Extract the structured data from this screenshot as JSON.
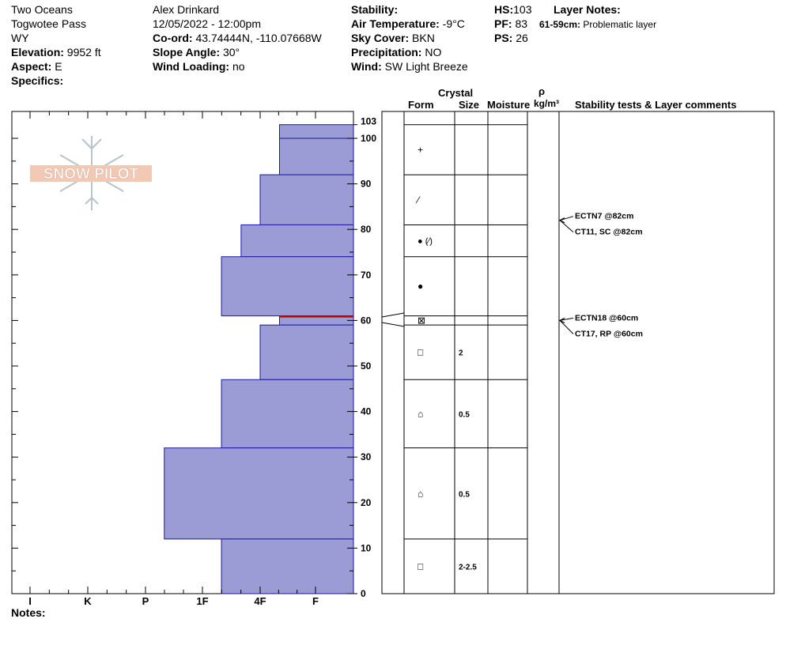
{
  "header": {
    "location": "Two Oceans",
    "area": "Togwotee Pass",
    "state": "WY",
    "elevation_label": "Elevation:",
    "elevation_value": "9952 ft",
    "aspect_label": "Aspect:",
    "aspect_value": "E",
    "specifics_label": "Specifics:",
    "observer": "Alex Drinkard",
    "datetime": "12/05/2022 - 12:00pm",
    "coord_label": "Co-ord:",
    "coord_value": "43.74444N, -110.07668W",
    "slope_label": "Slope Angle:",
    "slope_value": "30°",
    "wind_loading_label": "Wind Loading:",
    "wind_loading_value": "no",
    "stability_label": "Stability:",
    "air_temp_label": "Air Temperature:",
    "air_temp_value": "-9°C",
    "sky_label": "Sky Cover:",
    "sky_value": "BKN",
    "precip_label": "Precipitation:",
    "precip_value": "NO",
    "wind_label": "Wind:",
    "wind_value": "SW Light Breeze",
    "hs_label": "HS:",
    "hs_value": "103",
    "pf_label": "PF:",
    "pf_value": "83",
    "ps_label": "PS:",
    "ps_value": "26",
    "layer_notes_label": "Layer Notes:",
    "layer_note_range": "61-59cm:",
    "layer_note_text": "Problematic layer"
  },
  "logo_text": "SNOW PILOT",
  "notes_label": "Notes:",
  "columns": {
    "crystal": "Crystal",
    "form": "Form",
    "size": "Size",
    "moisture": "Moisture",
    "rho": "ρ",
    "density_unit": "kg/m³",
    "stability": "Stability tests & Layer comments"
  },
  "colors": {
    "layer_fill": "#9b9bd6",
    "layer_stroke": "#1a1aa0",
    "problem_layer": "#cc0000"
  },
  "chart_data": {
    "type": "bar",
    "orientation": "horizontal",
    "x_categories": [
      "I",
      "K",
      "P",
      "1F",
      "4F",
      "F"
    ],
    "y_axis": {
      "min": 0,
      "max": 103,
      "ticks": [
        0,
        10,
        20,
        30,
        40,
        50,
        60,
        70,
        80,
        90,
        100,
        103
      ]
    },
    "layers": [
      {
        "bottom": 100,
        "top": 103,
        "hardness": 0.65
      },
      {
        "bottom": 92,
        "top": 100,
        "hardness": 0.65,
        "form": "+"
      },
      {
        "bottom": 81,
        "top": 92,
        "hardness": 1.0,
        "form": "/"
      },
      {
        "bottom": 74,
        "top": 81,
        "hardness": 1.33,
        "form": "● (/)"
      },
      {
        "bottom": 61,
        "top": 74,
        "hardness": 1.67,
        "form": "●"
      },
      {
        "bottom": 59,
        "top": 61,
        "hardness": 0.65,
        "form": "⊠",
        "problematic": true
      },
      {
        "bottom": 47,
        "top": 59,
        "hardness": 1.0,
        "form": "□",
        "size": "2"
      },
      {
        "bottom": 32,
        "top": 47,
        "hardness": 1.67,
        "form": "⌂",
        "size": "0.5"
      },
      {
        "bottom": 12,
        "top": 32,
        "hardness": 2.67,
        "form": "⌂",
        "size": "0.5"
      },
      {
        "bottom": 0,
        "top": 12,
        "hardness": 1.67,
        "form": "□",
        "size": "2-2.5"
      }
    ],
    "form_rows": [
      {
        "bottom": 92,
        "top": 103,
        "form": "+",
        "size": ""
      },
      {
        "bottom": 81,
        "top": 92,
        "form": "⁄",
        "size": ""
      },
      {
        "bottom": 74,
        "top": 81,
        "form": "● (⁄)",
        "size": ""
      },
      {
        "bottom": 61,
        "top": 74,
        "form": "●",
        "size": ""
      },
      {
        "bottom": 59,
        "top": 61,
        "form": "⊠",
        "size": ""
      },
      {
        "bottom": 47,
        "top": 59,
        "form": "□",
        "size": "2"
      },
      {
        "bottom": 32,
        "top": 47,
        "form": "⌂",
        "size": "0.5"
      },
      {
        "bottom": 12,
        "top": 32,
        "form": "⌂",
        "size": "0.5"
      },
      {
        "bottom": 0,
        "top": 12,
        "form": "□",
        "size": "2-2.5"
      }
    ],
    "stability_tests": [
      {
        "text": "ECTN7 @82cm",
        "depth": 82
      },
      {
        "text": "CT11, SC @82cm",
        "depth": 82
      },
      {
        "text": "ECTN18 @60cm",
        "depth": 60
      },
      {
        "text": "CT17, RP @60cm",
        "depth": 60
      }
    ]
  }
}
